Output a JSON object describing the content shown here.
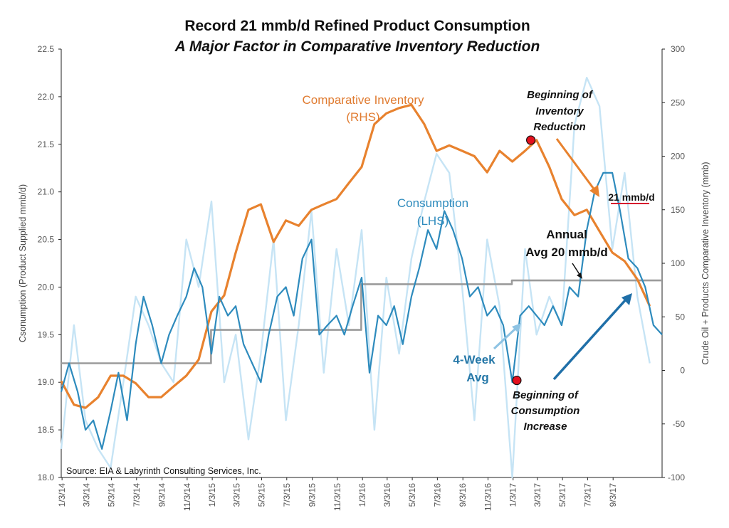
{
  "chart_data": {
    "type": "line",
    "title": "Record 21 mmb/d Refined Product Consumption",
    "subtitle": "A Major Factor in Comparative Inventory Reduction",
    "ylabel_left": "Csonumption (Product Supplied mmb/d)",
    "ylabel_right": "Crude Oil + Products Comparative Inventory (mmb)",
    "ylim_left": [
      18.0,
      22.5
    ],
    "ylim_right": [
      -100,
      300
    ],
    "yticks_left": [
      "18.0",
      "18.5",
      "19.0",
      "19.5",
      "20.0",
      "20.5",
      "21.0",
      "21.5",
      "22.0",
      "22.5"
    ],
    "yticks_right": [
      "-100",
      "-50",
      "0",
      "50",
      "100",
      "150",
      "200",
      "250",
      "300"
    ],
    "xlim": [
      "2014-01-01",
      "2017-12-31"
    ],
    "x_tick_labels": [
      "1/3/14",
      "3/3/14",
      "5/3/14",
      "7/3/14",
      "9/3/14",
      "11/3/14",
      "1/3/15",
      "3/3/15",
      "5/3/15",
      "7/3/15",
      "9/3/15",
      "11/3/15",
      "1/3/16",
      "3/3/16",
      "5/3/16",
      "7/3/16",
      "9/3/16",
      "11/3/16",
      "1/3/17",
      "3/3/17",
      "5/3/17",
      "7/3/17",
      "9/3/17"
    ],
    "series": [
      {
        "name": "Comparative Inventory (RHS)",
        "axis": "right",
        "color": "#e8822e",
        "x": [
          "2014-01-01",
          "2014-02-01",
          "2014-03-01",
          "2014-04-01",
          "2014-05-01",
          "2014-06-01",
          "2014-07-01",
          "2014-08-01",
          "2014-09-01",
          "2014-10-01",
          "2014-11-01",
          "2014-12-01",
          "2015-01-01",
          "2015-02-01",
          "2015-03-01",
          "2015-04-01",
          "2015-05-01",
          "2015-06-01",
          "2015-07-01",
          "2015-08-01",
          "2015-09-01",
          "2015-10-01",
          "2015-11-01",
          "2015-12-01",
          "2016-01-01",
          "2016-02-01",
          "2016-03-01",
          "2016-04-01",
          "2016-05-01",
          "2016-06-01",
          "2016-07-01",
          "2016-08-01",
          "2016-09-01",
          "2016-10-01",
          "2016-11-01",
          "2016-12-01",
          "2017-01-01",
          "2017-02-01",
          "2017-03-01",
          "2017-04-01",
          "2017-05-01",
          "2017-06-01",
          "2017-07-01",
          "2017-08-01",
          "2017-09-01",
          "2017-10-01",
          "2017-11-01",
          "2017-12-01"
        ],
        "values": [
          -10,
          -32,
          -35,
          -25,
          -5,
          -5,
          -12,
          -25,
          -25,
          -15,
          -5,
          10,
          55,
          70,
          110,
          150,
          155,
          120,
          140,
          135,
          150,
          155,
          160,
          175,
          190,
          230,
          240,
          245,
          248,
          230,
          205,
          210,
          205,
          200,
          185,
          205,
          195,
          205,
          215,
          190,
          160,
          145,
          150,
          130,
          110,
          102,
          85,
          60
        ]
      },
      {
        "name": "Consumption (LHS)",
        "axis": "left",
        "color": "#c6e4f5",
        "x": [
          "2014-01-01",
          "2014-02-01",
          "2014-03-01",
          "2014-04-01",
          "2014-05-01",
          "2014-06-01",
          "2014-07-01",
          "2014-08-01",
          "2014-09-01",
          "2014-10-01",
          "2014-11-01",
          "2014-12-01",
          "2015-01-01",
          "2015-02-01",
          "2015-03-01",
          "2015-04-01",
          "2015-05-01",
          "2015-06-01",
          "2015-07-01",
          "2015-08-01",
          "2015-09-01",
          "2015-10-01",
          "2015-11-01",
          "2015-12-01",
          "2016-01-01",
          "2016-02-01",
          "2016-03-01",
          "2016-04-01",
          "2016-05-01",
          "2016-06-01",
          "2016-07-01",
          "2016-08-01",
          "2016-09-01",
          "2016-10-01",
          "2016-11-01",
          "2016-12-01",
          "2017-01-01",
          "2017-02-01",
          "2017-03-01",
          "2017-04-01",
          "2017-05-01",
          "2017-06-01",
          "2017-07-01",
          "2017-08-01",
          "2017-09-01",
          "2017-10-01",
          "2017-11-01",
          "2017-12-01"
        ],
        "values": [
          18.3,
          19.6,
          18.6,
          18.3,
          18.1,
          19.0,
          19.9,
          19.6,
          19.2,
          19.0,
          20.5,
          20.0,
          20.9,
          19.0,
          19.5,
          18.4,
          19.3,
          20.5,
          18.6,
          19.6,
          20.8,
          19.1,
          20.4,
          19.6,
          20.6,
          18.5,
          20.1,
          19.3,
          20.3,
          20.9,
          21.4,
          21.2,
          20.0,
          18.6,
          20.5,
          19.8,
          18.0,
          20.4,
          19.5,
          19.9,
          19.6,
          21.7,
          22.2,
          21.9,
          20.4,
          21.2,
          19.9,
          19.2
        ]
      },
      {
        "name": "4-Week Avg",
        "axis": "left",
        "color": "#2e8bbd",
        "x": [
          "2014-01-01",
          "2014-01-20",
          "2014-02-10",
          "2014-03-01",
          "2014-03-20",
          "2014-04-10",
          "2014-05-01",
          "2014-05-20",
          "2014-06-10",
          "2014-07-01",
          "2014-07-20",
          "2014-08-10",
          "2014-09-01",
          "2014-09-20",
          "2014-10-10",
          "2014-11-01",
          "2014-11-20",
          "2014-12-10",
          "2015-01-01",
          "2015-01-20",
          "2015-02-10",
          "2015-03-01",
          "2015-03-20",
          "2015-04-10",
          "2015-05-01",
          "2015-05-20",
          "2015-06-10",
          "2015-07-01",
          "2015-07-20",
          "2015-08-10",
          "2015-09-01",
          "2015-09-20",
          "2015-10-10",
          "2015-11-01",
          "2015-11-20",
          "2015-12-10",
          "2016-01-01",
          "2016-01-20",
          "2016-02-10",
          "2016-03-01",
          "2016-03-20",
          "2016-04-10",
          "2016-05-01",
          "2016-05-20",
          "2016-06-10",
          "2016-07-01",
          "2016-07-20",
          "2016-08-10",
          "2016-09-01",
          "2016-09-20",
          "2016-10-10",
          "2016-11-01",
          "2016-11-20",
          "2016-12-10",
          "2017-01-01",
          "2017-01-20",
          "2017-02-10",
          "2017-03-01",
          "2017-03-20",
          "2017-04-10",
          "2017-05-01",
          "2017-05-20",
          "2017-06-10",
          "2017-07-01",
          "2017-07-20",
          "2017-08-10",
          "2017-09-01",
          "2017-09-20",
          "2017-10-10",
          "2017-11-01",
          "2017-11-20",
          "2017-12-10",
          "2017-12-31"
        ],
        "values": [
          18.9,
          19.2,
          18.9,
          18.5,
          18.6,
          18.3,
          18.7,
          19.1,
          18.6,
          19.4,
          19.9,
          19.6,
          19.2,
          19.5,
          19.7,
          19.9,
          20.2,
          20.0,
          19.3,
          19.9,
          19.7,
          19.8,
          19.4,
          19.2,
          19.0,
          19.5,
          19.9,
          20.0,
          19.7,
          20.3,
          20.5,
          19.5,
          19.6,
          19.7,
          19.5,
          19.8,
          20.1,
          19.1,
          19.7,
          19.6,
          19.8,
          19.4,
          19.9,
          20.2,
          20.6,
          20.4,
          20.8,
          20.6,
          20.3,
          19.9,
          20.0,
          19.7,
          19.8,
          19.6,
          19.0,
          19.7,
          19.8,
          19.7,
          19.6,
          19.8,
          19.6,
          20.0,
          19.9,
          20.6,
          21.0,
          21.2,
          21.2,
          20.8,
          20.3,
          20.2,
          20.0,
          19.6,
          19.5
        ]
      },
      {
        "name": "Annual Avg",
        "axis": "left",
        "color": "#9b9b9b",
        "x": [
          "2014-01-01",
          "2014-12-31",
          "2014-12-31",
          "2015-12-31",
          "2015-12-31",
          "2016-12-31",
          "2016-12-31",
          "2017-12-31"
        ],
        "values": [
          19.2,
          19.2,
          19.55,
          19.55,
          20.03,
          20.03,
          20.07,
          20.07
        ]
      }
    ],
    "annotations": {
      "inventory_label_1": "Comparative Inventory",
      "inventory_label_2": "(RHS)",
      "consumption_label_1": "Consumption",
      "consumption_label_2": "(LHS)",
      "annual_label_1": "Annual",
      "annual_label_2": "Avg 20 mmb/d",
      "four_week_label_1": "4-Week",
      "four_week_label_2": "Avg",
      "inv_reduction_1": "Beginning of",
      "inv_reduction_2": "Inventory",
      "inv_reduction_3": "Reduction",
      "cons_increase_1": "Beginning of",
      "cons_increase_2": "Consumption",
      "cons_increase_3": "Increase",
      "record_label": "21 mmb/d",
      "source": "Source:  EIA & Labyrinth Consulting Services, Inc."
    },
    "markers": {
      "inventory_reduction": {
        "x": "2017-02-15",
        "axis": "right",
        "y": 215
      },
      "consumption_increase": {
        "x": "2017-01-12",
        "axis": "left",
        "y": 19.02
      }
    },
    "grid": false,
    "legend": "none"
  }
}
